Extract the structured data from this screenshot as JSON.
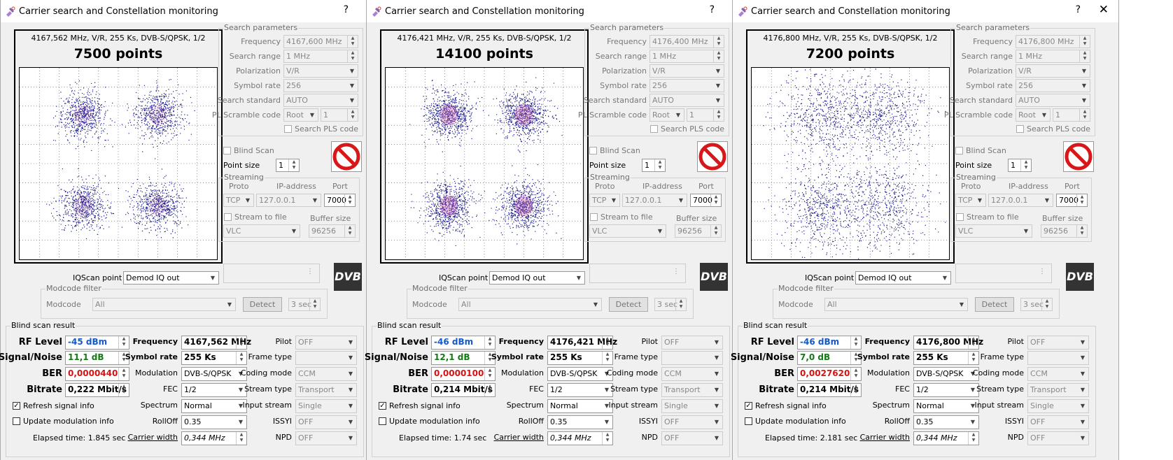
{
  "windows": [
    {
      "title": "Carrier search and Constellation monitoring",
      "header": "4167,562 MHz, V/R, 255 Ks, DVB-S/QPSK, 1/2",
      "points": "7500 points",
      "point_count": 7500,
      "spread": 1.0,
      "offset": 0,
      "search": {
        "frequency": "4167,600 MHz",
        "range": "1 MHz",
        "polarization": "V/R",
        "symbol_rate": "256",
        "standard": "AUTO",
        "pl_mode": "Root",
        "pl_code": "1"
      },
      "result": {
        "rf": "-45 dBm",
        "sn": "11,1 dB",
        "ber": "0,0000440",
        "bitrate": "0,222 Mbit/s",
        "frequency": "4167,562 MHz",
        "symrate": "255 Ks",
        "modulation": "DVB-S/QPSK",
        "fec": "1/2",
        "spectrum": "Normal",
        "rolloff": "0.35",
        "carrier_width": "0,344 MHz",
        "pilot": "OFF",
        "frame_type": "",
        "coding_mode": "CCM",
        "stream_type": "Transport",
        "input_stream": "Single",
        "issyi": "OFF",
        "npd": "OFF",
        "elapsed": "Elapsed time: 1.845 sec"
      }
    },
    {
      "title": "Carrier search and Constellation monitoring",
      "header": "4176,421 MHz, V/R, 255 Ks, DVB-S/QPSK, 1/2",
      "points": "14100 points",
      "point_count": 14100,
      "spread": 1.0,
      "offset": 0,
      "search": {
        "frequency": "4176,400 MHz",
        "range": "1 MHz",
        "polarization": "V/R",
        "symbol_rate": "256",
        "standard": "AUTO",
        "pl_mode": "Root",
        "pl_code": "1"
      },
      "result": {
        "rf": "-46 dBm",
        "sn": "12,1 dB",
        "ber": "0,0000100",
        "bitrate": "0,214 Mbit/s",
        "frequency": "4176,421 MHz",
        "symrate": "255 Ks",
        "modulation": "DVB-S/QPSK",
        "fec": "1/2",
        "spectrum": "Normal",
        "rolloff": "0.35",
        "carrier_width": "0,344 MHz",
        "pilot": "OFF",
        "frame_type": "",
        "coding_mode": "CCM",
        "stream_type": "Transport",
        "input_stream": "Single",
        "issyi": "OFF",
        "npd": "OFF",
        "elapsed": "Elapsed time: 1.74 sec"
      }
    },
    {
      "title": "Carrier search and Constellation monitoring",
      "header": "4176,800 MHz, V/R, 255 Ks, DVB-S/QPSK, 1/2",
      "points": "7200 points",
      "point_count": 7200,
      "spread": 1.8,
      "offset": -10,
      "search": {
        "frequency": "4176,800 MHz",
        "range": "1 MHz",
        "polarization": "V/R",
        "symbol_rate": "256",
        "standard": "AUTO",
        "pl_mode": "Root",
        "pl_code": "1"
      },
      "result": {
        "rf": "-46 dBm",
        "sn": "7,0 dB",
        "ber": "0,0027620",
        "bitrate": "0,214 Mbit/s",
        "frequency": "4176,800 MHz",
        "symrate": "255 Ks",
        "modulation": "DVB-S/QPSK",
        "fec": "1/2",
        "spectrum": "Normal",
        "rolloff": "0.35",
        "carrier_width": "0,344 MHz",
        "pilot": "OFF",
        "frame_type": "",
        "coding_mode": "CCM",
        "stream_type": "Transport",
        "input_stream": "Single",
        "issyi": "OFF",
        "npd": "OFF",
        "elapsed": "Elapsed time: 2.181 sec"
      }
    }
  ],
  "labels": {
    "help": "?",
    "close": "✕",
    "search_parameters": "Search parameters",
    "frequency": "Frequency",
    "search_range": "Search range",
    "polarization": "Polarization",
    "symbol_rate": "Symbol rate",
    "search_standard": "Search standard",
    "pl_scramble": "PL Scramble code",
    "search_pls": "Search PLS code",
    "blind_scan": "Blind Scan",
    "point_size": "Point size",
    "point_size_value": "1",
    "streaming": "Streaming",
    "proto": "Proto",
    "proto_value": "TCP",
    "ip_address": "IP-address",
    "ip_value": "127.0.0.1",
    "port": "Port",
    "port_value": "7000",
    "stream_to_file": "Stream to file",
    "buffer_size": "Buffer size",
    "player": "VLC",
    "buffer_value": "96256",
    "iqscan_point": "IQScan point",
    "iqscan_value": "Demod IQ out",
    "modcode_filter": "Modcode filter",
    "modcode": "Modcode",
    "modcode_value": "All",
    "detect": "Detect",
    "detect_time": "3 sec",
    "blind_scan_result": "Blind scan result",
    "rf_level": "RF Level",
    "signal_noise": "Signal/Noise",
    "ber": "BER",
    "bitrate": "Bitrate",
    "r_frequency": "Frequency",
    "r_symbol_rate": "Symbol rate",
    "modulation": "Modulation",
    "fec": "FEC",
    "spectrum": "Spectrum",
    "rolloff": "RollOff",
    "carrier_width": "Carrier width",
    "pilot": "Pilot",
    "frame_type": "Frame type",
    "coding_mode": "Coding mode",
    "stream_type": "Stream type",
    "input_stream": "Input stream",
    "issyi": "ISSYI",
    "npd": "NPD",
    "refresh_signal": "Refresh signal info",
    "update_modulation": "Update modulation info",
    "dvb": "DVB"
  },
  "colors": {
    "constellation_dots": "#1a1a8c",
    "hot_core": "#d060b0",
    "rf_value": "#1559c8",
    "sn_value": "#147a14",
    "ber_value": "#d41414"
  }
}
